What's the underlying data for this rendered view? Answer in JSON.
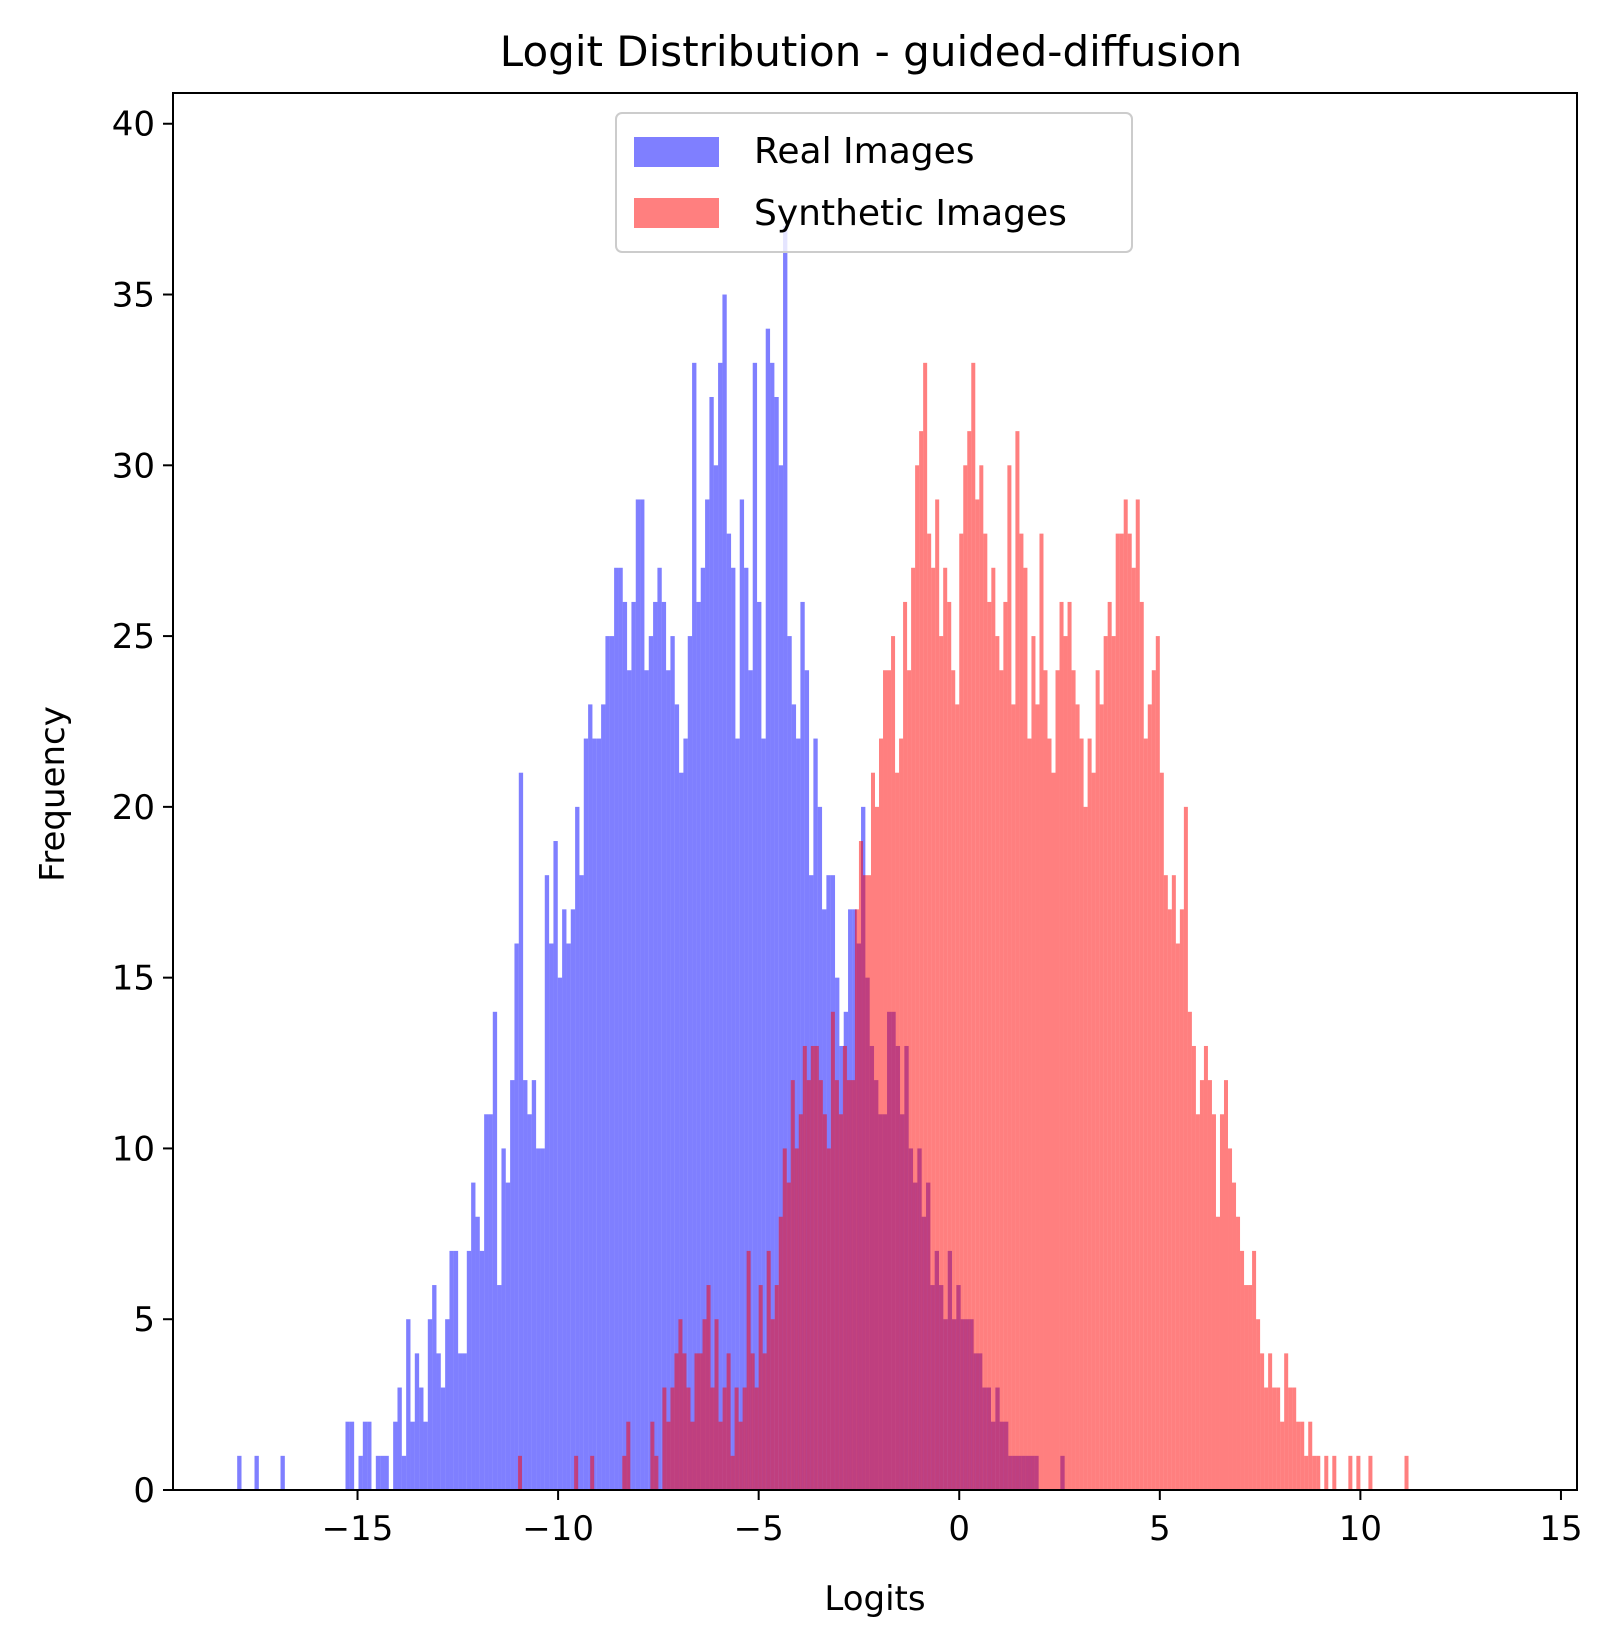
{
  "chart_data": {
    "type": "histogram",
    "title": "Logit Distribution - guided-diffusion",
    "xlabel": "Logits",
    "ylabel": "Frequency",
    "xlim": [
      -19.6,
      15.4
    ],
    "ylim": [
      0,
      40.9
    ],
    "xticks": [
      -15,
      -10,
      -5,
      0,
      5,
      10,
      15
    ],
    "xtick_labels": [
      "−15",
      "−10",
      "−5",
      "0",
      "5",
      "10",
      "15"
    ],
    "yticks": [
      0,
      5,
      10,
      15,
      20,
      25,
      30,
      35,
      40
    ],
    "ytick_labels": [
      "0",
      "5",
      "10",
      "15",
      "20",
      "25",
      "30",
      "35",
      "40"
    ],
    "legend_position": "upper-center",
    "series": [
      {
        "name": "Real Images",
        "color": "#0000ff",
        "opacity": 0.5,
        "bin_start": -18.0,
        "bin_width": 0.108,
        "counts": [
          1,
          0,
          0,
          0,
          1,
          0,
          0,
          0,
          0,
          0,
          1,
          0,
          0,
          0,
          0,
          0,
          0,
          0,
          0,
          0,
          0,
          0,
          0,
          0,
          0,
          2,
          2,
          0,
          1,
          2,
          2,
          0,
          1,
          1,
          1,
          0,
          2,
          3,
          1,
          5,
          2,
          4,
          3,
          2,
          5,
          6,
          4,
          3,
          5,
          7,
          7,
          4,
          4,
          7,
          9,
          8,
          7,
          11,
          11,
          14,
          6,
          10,
          9,
          12,
          16,
          21,
          12,
          11,
          12,
          10,
          10,
          18,
          16,
          19,
          15,
          17,
          16,
          17,
          20,
          18,
          22,
          23,
          22,
          22,
          23,
          25,
          25,
          27,
          27,
          26,
          24,
          26,
          29,
          29,
          24,
          25,
          26,
          27,
          26,
          24,
          25,
          23,
          21,
          22,
          25,
          33,
          26,
          27,
          29,
          32,
          30,
          33,
          35,
          28,
          27,
          22,
          29,
          27,
          24,
          33,
          26,
          22,
          34,
          33,
          32,
          30,
          37,
          25,
          23,
          22,
          26,
          24,
          18,
          22,
          20,
          17,
          18,
          18,
          15,
          13,
          14,
          17,
          17,
          16,
          20,
          15,
          13,
          12,
          11,
          11,
          14,
          14,
          13,
          11,
          13,
          10,
          9,
          10,
          8,
          9,
          6,
          7,
          6,
          5,
          7,
          5,
          6,
          5,
          5,
          5,
          4,
          4,
          3,
          3,
          2,
          3,
          2,
          2,
          1,
          1,
          1,
          1,
          1,
          1,
          1,
          0,
          0,
          0,
          0,
          0,
          1
        ]
      },
      {
        "name": "Synthetic Images",
        "color": "#ff0000",
        "opacity": 0.5,
        "bin_start": -11.0,
        "bin_width": 0.1,
        "counts": [
          1,
          0,
          0,
          0,
          0,
          0,
          0,
          0,
          0,
          0,
          0,
          0,
          0,
          0,
          1,
          0,
          0,
          0,
          1,
          0,
          0,
          0,
          0,
          0,
          0,
          0,
          1,
          2,
          0,
          0,
          0,
          0,
          0,
          2,
          1,
          0,
          3,
          2,
          3,
          4,
          5,
          4,
          3,
          2,
          4,
          4,
          5,
          6,
          3,
          5,
          2,
          3,
          4,
          1,
          3,
          2,
          3,
          7,
          4,
          3,
          6,
          4,
          7,
          5,
          6,
          8,
          10,
          9,
          12,
          10,
          11,
          13,
          12,
          13,
          13,
          12,
          11,
          10,
          14,
          12,
          11,
          13,
          12,
          12,
          17,
          19,
          18,
          18,
          21,
          20,
          22,
          24,
          24,
          25,
          21,
          22,
          26,
          24,
          27,
          30,
          31,
          33,
          28,
          27,
          29,
          25,
          27,
          26,
          24,
          23,
          28,
          30,
          31,
          33,
          29,
          30,
          28,
          26,
          27,
          25,
          24,
          26,
          30,
          23,
          31,
          28,
          27,
          22,
          25,
          23,
          28,
          24,
          22,
          21,
          24,
          26,
          25,
          26,
          24,
          23,
          22,
          20,
          22,
          21,
          24,
          23,
          25,
          26,
          25,
          28,
          28,
          29,
          28,
          27,
          29,
          26,
          22,
          23,
          24,
          25,
          21,
          18,
          17,
          18,
          16,
          17,
          20,
          14,
          13,
          11,
          12,
          13,
          12,
          11,
          8,
          11,
          12,
          10,
          9,
          8,
          7,
          6,
          6,
          7,
          5,
          4,
          3,
          4,
          3,
          3,
          2,
          4,
          3,
          3,
          2,
          2,
          1,
          2,
          1,
          1,
          0,
          1,
          0,
          1,
          0,
          0,
          0,
          1,
          0,
          1,
          0,
          0,
          1,
          0,
          0,
          0,
          0,
          0,
          0,
          0,
          0,
          1
        ]
      }
    ]
  }
}
